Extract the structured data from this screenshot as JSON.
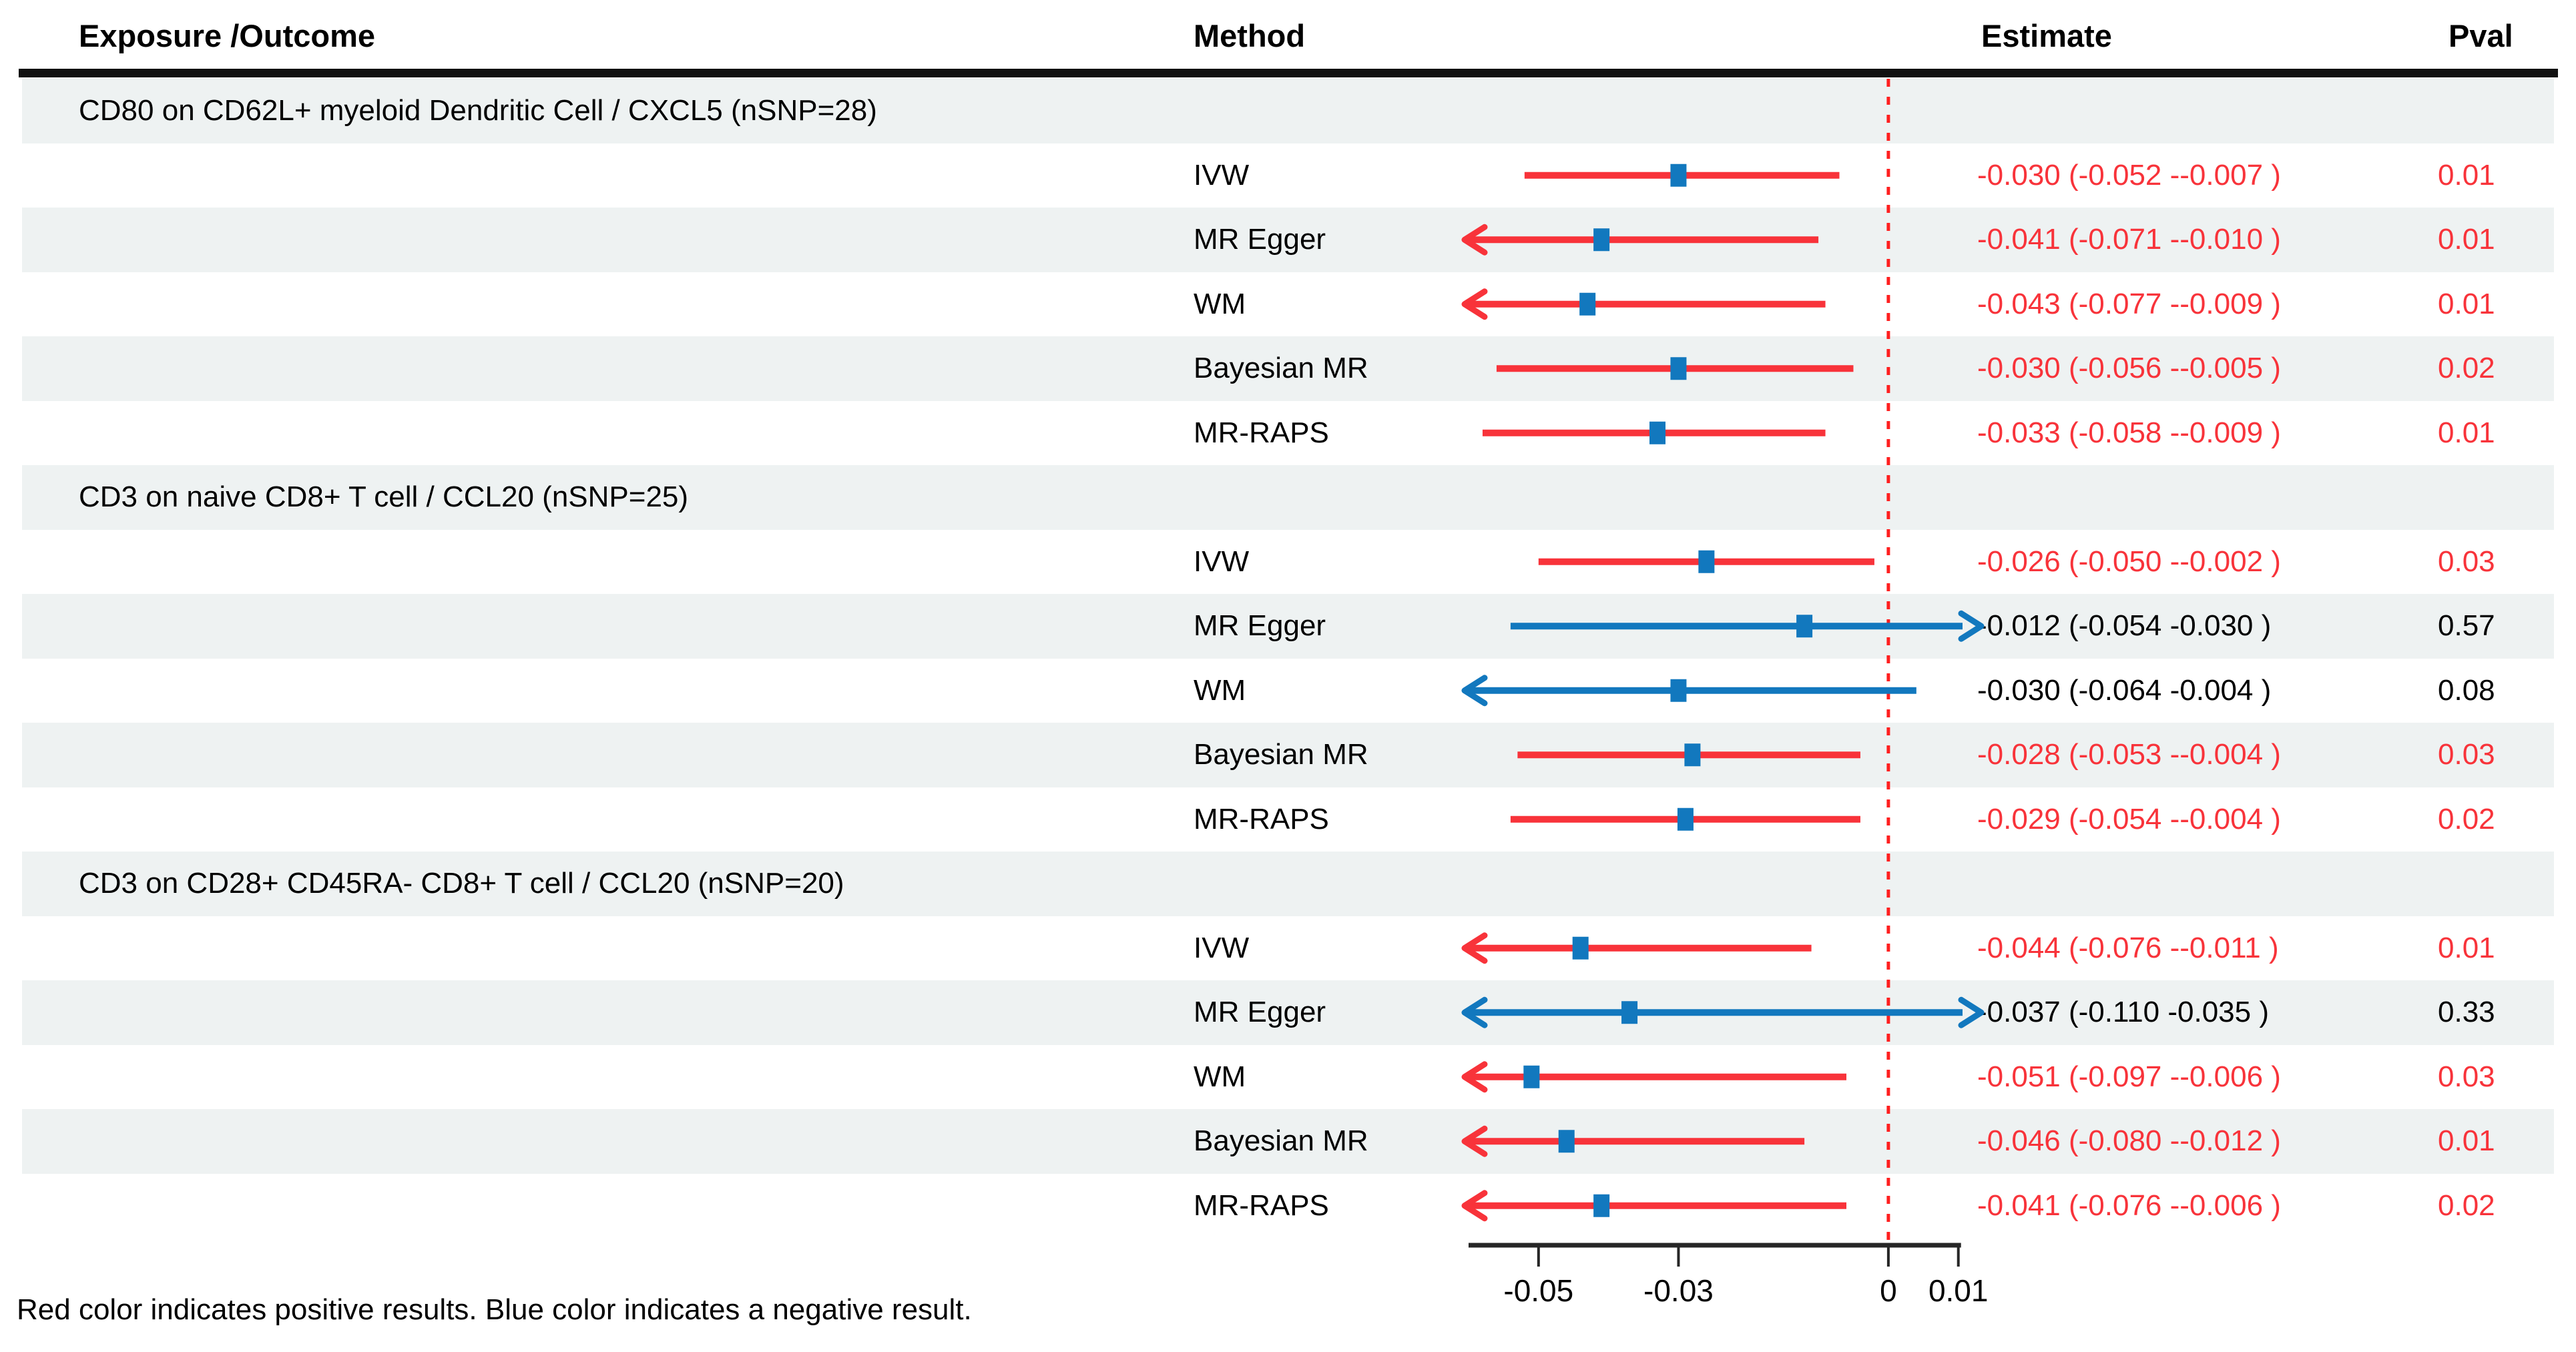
{
  "header": {
    "exposure_outcome": "Exposure /Outcome",
    "method": "Method",
    "estimate": "Estimate",
    "pval": "Pval"
  },
  "footer": {
    "note": "Red color indicates positive results. Blue color indicates a negative result."
  },
  "colors": {
    "red": "#F8333A",
    "blue": "#1278BE",
    "band": "#EEF2F2",
    "black": "#000000",
    "zero_line": "#FF1F1F",
    "axis": "#262626"
  },
  "chart_data": {
    "type": "forest",
    "axis": {
      "min": -0.06,
      "max": 0.0106,
      "tick_values": [
        -0.05,
        -0.03,
        0,
        0.01
      ],
      "tick_labels": [
        "-0.05",
        "-0.03",
        "0",
        "0.01"
      ],
      "zero_line": 0
    },
    "groups": [
      {
        "title": "CD80 on CD62L+ myeloid Dendritic Cell / CXCL5 (nSNP=28)",
        "rows": [
          {
            "method": "IVW",
            "est": -0.03,
            "lo": -0.052,
            "hi": -0.007,
            "estimate_text": "-0.030 (-0.052 --0.007 )",
            "pval": "0.01",
            "color": "red"
          },
          {
            "method": "MR Egger",
            "est": -0.041,
            "lo": -0.071,
            "hi": -0.01,
            "estimate_text": "-0.041 (-0.071 --0.010 )",
            "pval": "0.01",
            "color": "red"
          },
          {
            "method": "WM",
            "est": -0.043,
            "lo": -0.077,
            "hi": -0.009,
            "estimate_text": "-0.043 (-0.077 --0.009 )",
            "pval": "0.01",
            "color": "red"
          },
          {
            "method": "Bayesian MR",
            "est": -0.03,
            "lo": -0.056,
            "hi": -0.005,
            "estimate_text": "-0.030 (-0.056 --0.005 )",
            "pval": "0.02",
            "color": "red"
          },
          {
            "method": "MR-RAPS",
            "est": -0.033,
            "lo": -0.058,
            "hi": -0.009,
            "estimate_text": "-0.033 (-0.058 --0.009 )",
            "pval": "0.01",
            "color": "red"
          }
        ]
      },
      {
        "title": "CD3 on naive CD8+ T cell / CCL20 (nSNP=25)",
        "rows": [
          {
            "method": "IVW",
            "est": -0.026,
            "lo": -0.05,
            "hi": -0.002,
            "estimate_text": "-0.026 (-0.050 --0.002 )",
            "pval": "0.03",
            "color": "red"
          },
          {
            "method": "MR Egger",
            "est": -0.012,
            "lo": -0.054,
            "hi": 0.03,
            "estimate_text": "-0.012 (-0.054 -0.030 )",
            "pval": "0.57",
            "color": "blue"
          },
          {
            "method": "WM",
            "est": -0.03,
            "lo": -0.064,
            "hi": 0.004,
            "estimate_text": "-0.030 (-0.064 -0.004 )",
            "pval": "0.08",
            "color": "blue"
          },
          {
            "method": "Bayesian MR",
            "est": -0.028,
            "lo": -0.053,
            "hi": -0.004,
            "estimate_text": "-0.028 (-0.053 --0.004 )",
            "pval": "0.03",
            "color": "red"
          },
          {
            "method": "MR-RAPS",
            "est": -0.029,
            "lo": -0.054,
            "hi": -0.004,
            "estimate_text": "-0.029 (-0.054 --0.004 )",
            "pval": "0.02",
            "color": "red"
          }
        ]
      },
      {
        "title": "CD3 on CD28+ CD45RA- CD8+ T cell / CCL20 (nSNP=20)",
        "rows": [
          {
            "method": "IVW",
            "est": -0.044,
            "lo": -0.076,
            "hi": -0.011,
            "estimate_text": "-0.044 (-0.076 --0.011 )",
            "pval": "0.01",
            "color": "red"
          },
          {
            "method": "MR Egger",
            "est": -0.037,
            "lo": -0.11,
            "hi": 0.035,
            "estimate_text": "-0.037 (-0.110 -0.035 )",
            "pval": "0.33",
            "color": "blue"
          },
          {
            "method": "WM",
            "est": -0.051,
            "lo": -0.097,
            "hi": -0.006,
            "estimate_text": "-0.051 (-0.097 --0.006 )",
            "pval": "0.03",
            "color": "red"
          },
          {
            "method": "Bayesian MR",
            "est": -0.046,
            "lo": -0.08,
            "hi": -0.012,
            "estimate_text": "-0.046 (-0.080 --0.012 )",
            "pval": "0.01",
            "color": "red"
          },
          {
            "method": "MR-RAPS",
            "est": -0.041,
            "lo": -0.076,
            "hi": -0.006,
            "estimate_text": "-0.041 (-0.076 --0.006 )",
            "pval": "0.02",
            "color": "red"
          }
        ]
      }
    ]
  }
}
